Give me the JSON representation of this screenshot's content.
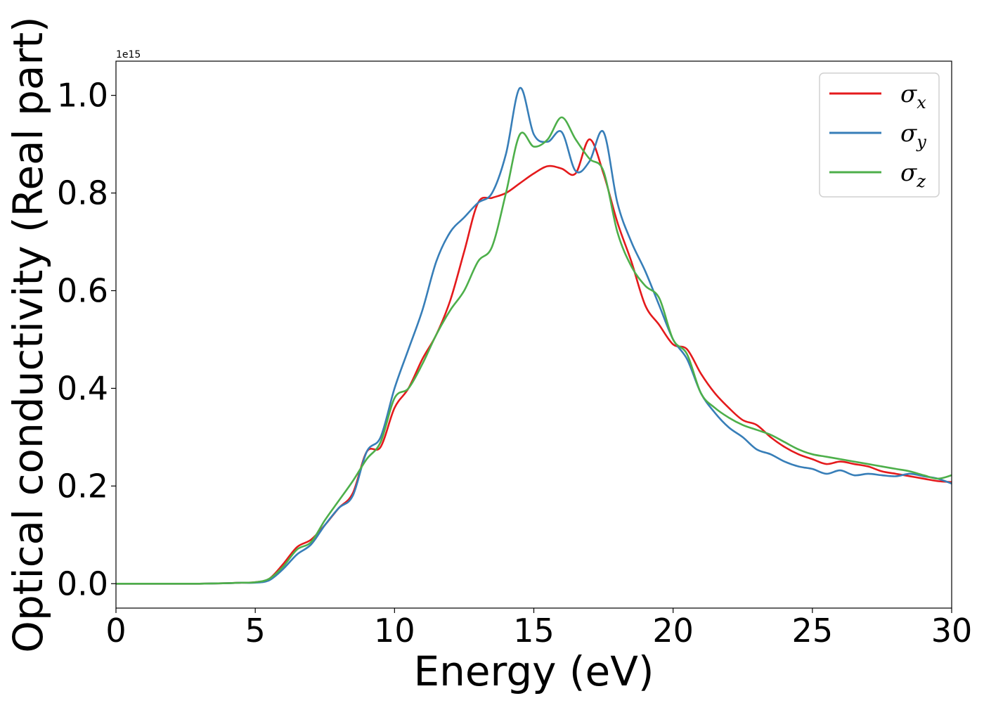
{
  "chart_data": {
    "type": "line",
    "xlabel": "Energy (eV)",
    "ylabel": "Optical conductivity (Real part)",
    "offset_text": "1e15",
    "xlim": [
      0,
      30
    ],
    "ylim": [
      -0.05,
      1.07
    ],
    "x_ticks": [
      0,
      5,
      10,
      15,
      20,
      25,
      30
    ],
    "x_tick_labels": [
      "0",
      "5",
      "10",
      "15",
      "20",
      "25",
      "30"
    ],
    "y_ticks": [
      0.0,
      0.2,
      0.4,
      0.6,
      0.8,
      1.0
    ],
    "y_tick_labels": [
      "0.0",
      "0.2",
      "0.4",
      "0.6",
      "0.8",
      "1.0"
    ],
    "grid": false,
    "legend_position": "top-right",
    "x": [
      0,
      1,
      2,
      3,
      4,
      4.5,
      5,
      5.5,
      6,
      6.5,
      7,
      7.5,
      8,
      8.5,
      9,
      9.5,
      10,
      10.5,
      11,
      11.5,
      12,
      12.5,
      13,
      13.5,
      14,
      14.5,
      15,
      15.5,
      16,
      16.5,
      17,
      17.5,
      18,
      18.5,
      19,
      19.5,
      20,
      20.5,
      21,
      21.5,
      22,
      22.5,
      23,
      23.5,
      24,
      24.5,
      25,
      25.5,
      26,
      26.5,
      27,
      27.5,
      28,
      28.5,
      29,
      29.5,
      30
    ],
    "series": [
      {
        "name": "σ",
        "subscript": "x",
        "color": "#e41a1c",
        "values": [
          0,
          0,
          0,
          0,
          0.001,
          0.002,
          0.003,
          0.01,
          0.04,
          0.075,
          0.09,
          0.12,
          0.155,
          0.185,
          0.27,
          0.28,
          0.36,
          0.4,
          0.46,
          0.51,
          0.58,
          0.68,
          0.78,
          0.79,
          0.8,
          0.82,
          0.84,
          0.855,
          0.85,
          0.84,
          0.91,
          0.84,
          0.74,
          0.66,
          0.57,
          0.53,
          0.49,
          0.48,
          0.43,
          0.39,
          0.36,
          0.335,
          0.325,
          0.3,
          0.28,
          0.265,
          0.255,
          0.245,
          0.25,
          0.245,
          0.24,
          0.23,
          0.225,
          0.22,
          0.215,
          0.21,
          0.208
        ]
      },
      {
        "name": "σ",
        "subscript": "y",
        "color": "#377eb8",
        "values": [
          0,
          0,
          0,
          0,
          0.001,
          0.002,
          0.002,
          0.007,
          0.03,
          0.06,
          0.08,
          0.12,
          0.155,
          0.18,
          0.27,
          0.3,
          0.4,
          0.48,
          0.56,
          0.66,
          0.72,
          0.75,
          0.78,
          0.8,
          0.88,
          1.015,
          0.92,
          0.905,
          0.925,
          0.845,
          0.865,
          0.925,
          0.78,
          0.7,
          0.64,
          0.57,
          0.5,
          0.46,
          0.39,
          0.35,
          0.32,
          0.3,
          0.275,
          0.265,
          0.25,
          0.24,
          0.235,
          0.225,
          0.232,
          0.222,
          0.225,
          0.222,
          0.22,
          0.225,
          0.22,
          0.215,
          0.205
        ]
      },
      {
        "name": "σ",
        "subscript": "z",
        "color": "#4daf4a",
        "values": [
          0,
          0,
          0,
          0,
          0.001,
          0.002,
          0.003,
          0.01,
          0.035,
          0.07,
          0.085,
          0.13,
          0.17,
          0.21,
          0.255,
          0.29,
          0.38,
          0.4,
          0.45,
          0.51,
          0.56,
          0.6,
          0.66,
          0.69,
          0.8,
          0.92,
          0.895,
          0.91,
          0.955,
          0.91,
          0.87,
          0.845,
          0.72,
          0.65,
          0.61,
          0.585,
          0.5,
          0.47,
          0.39,
          0.36,
          0.34,
          0.325,
          0.315,
          0.305,
          0.29,
          0.275,
          0.265,
          0.26,
          0.255,
          0.25,
          0.245,
          0.24,
          0.235,
          0.23,
          0.222,
          0.215,
          0.222
        ]
      }
    ]
  }
}
